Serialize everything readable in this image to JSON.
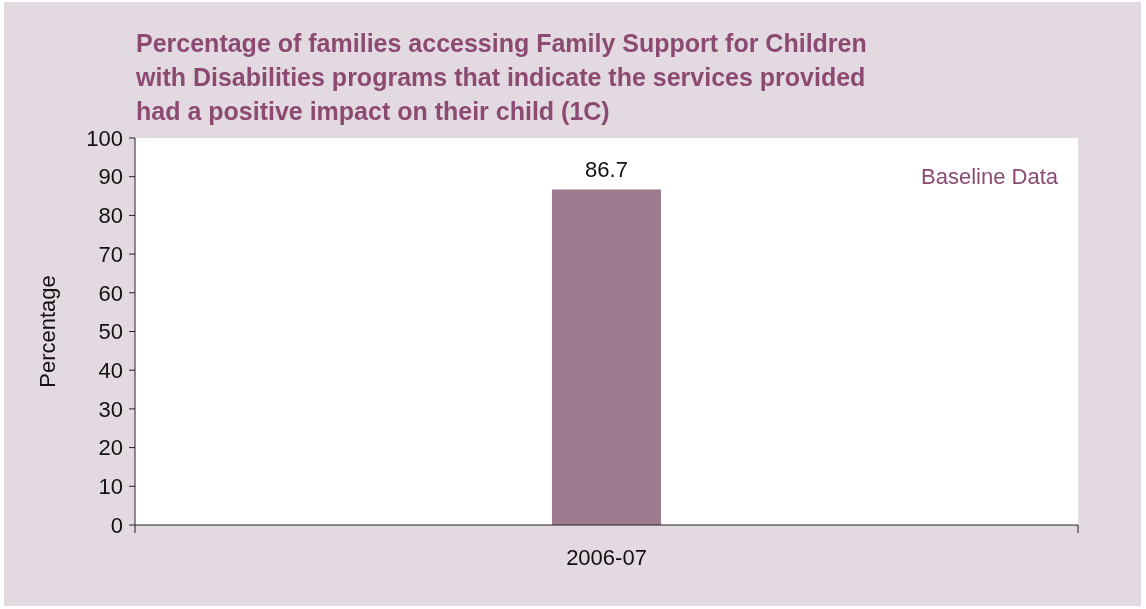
{
  "chart_data": {
    "type": "bar",
    "title": "Percentage of families accessing Family Support for Children with Disabilities programs that indicate the services provided had a positive impact on their child (1C)",
    "ylabel": "Percentage",
    "categories": [
      "2006-07"
    ],
    "values": [
      86.7
    ],
    "color": "#9e7b8f",
    "ylim": [
      0,
      100
    ],
    "yticks": [
      0,
      10,
      20,
      30,
      40,
      50,
      60,
      70,
      80,
      90,
      100
    ],
    "data_labels": true,
    "annotations": [
      "Baseline Data"
    ]
  }
}
